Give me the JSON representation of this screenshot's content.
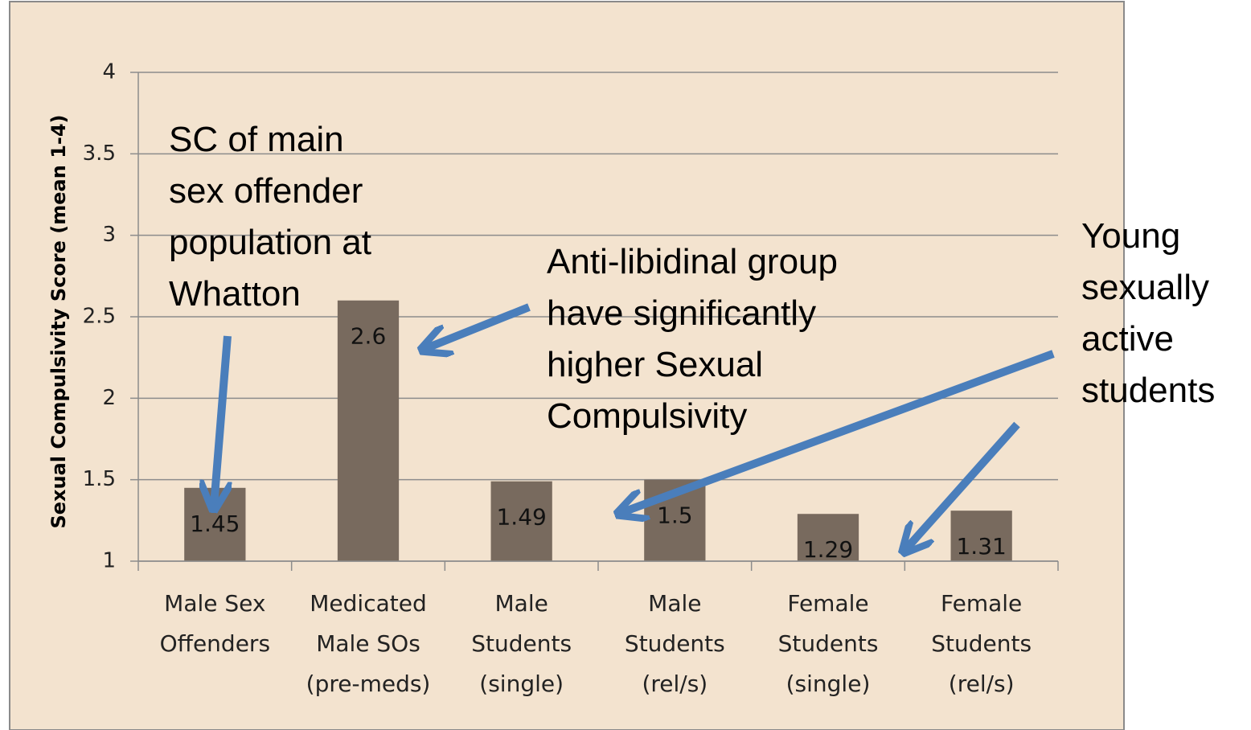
{
  "chart_data": {
    "type": "bar",
    "y_label": "Sexual Compulsivity Score (mean 1-4)",
    "categories": [
      "Male Sex\nOffenders",
      "Medicated\nMale SOs\n(pre-meds)",
      "Male\nStudents\n(single)",
      "Male\nStudents\n(rel/s)",
      "Female\nStudents\n(single)",
      "Female\nStudents\n(rel/s)"
    ],
    "values": [
      1.45,
      2.6,
      1.49,
      1.5,
      1.29,
      1.31
    ],
    "color": "#786a5e",
    "ylim": [
      1,
      4
    ],
    "yticks": [
      1,
      1.5,
      2,
      2.5,
      3,
      3.5,
      4
    ],
    "grid": true,
    "annotations": [
      "SC of main\nsex offender\npopulation at\nWhatton",
      "Anti-libidinal group\nhave significantly\nhigher Sexual\nCompulsivity",
      "Young\nsexually\nactive\nstudents"
    ]
  }
}
